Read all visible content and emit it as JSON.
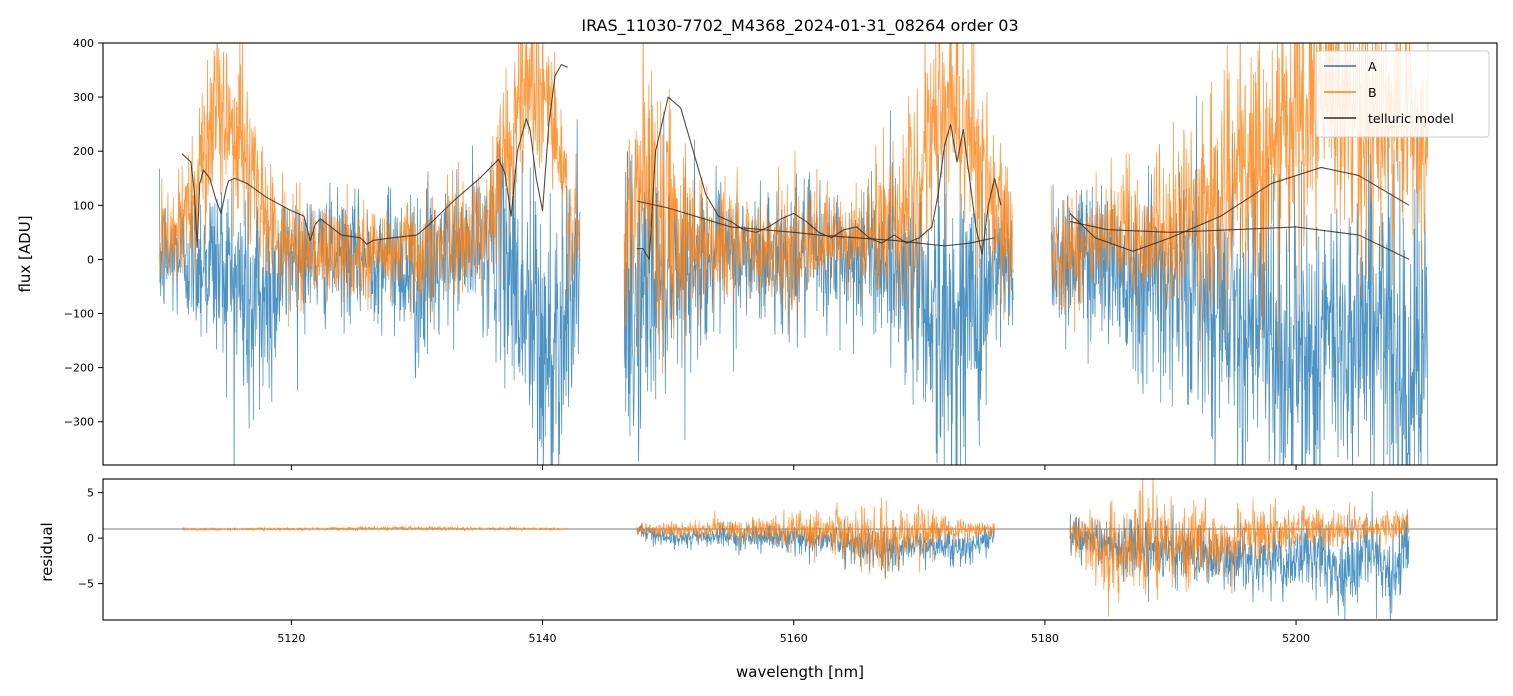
{
  "figure_title": "IRAS_11030-7702_M4368_2024-01-31_08264  order 03",
  "colors": {
    "A": "#1f77b4",
    "B": "#ff7f0e",
    "telluric": "#3a2a1e"
  },
  "chart_data": [
    {
      "panel": "flux",
      "type": "line",
      "title": "IRAS_11030-7702_M4368_2024-01-31_08264  order 03",
      "xlabel": "",
      "ylabel": "flux [ADU]",
      "xlim": [
        5105,
        5216
      ],
      "ylim": [
        -380,
        400
      ],
      "yticks": [
        -300,
        -200,
        -100,
        0,
        100,
        200,
        300,
        400
      ],
      "ytick_labels": [
        "−300",
        "−200",
        "−100",
        "0",
        "100",
        "200",
        "300",
        "400"
      ],
      "legend": {
        "placement": "top-right",
        "entries": [
          "A",
          "B",
          "telluric model"
        ]
      },
      "series": [
        {
          "name": "A",
          "noise_segments": [
            {
              "x": [
                5109.5,
                5111,
                5113,
                5115,
                5117,
                5120,
                5125,
                5128,
                5130,
                5133,
                5136,
                5137.5,
                5139,
                5140.5,
                5141.5,
                5143
              ],
              "center": [
                0,
                10,
                0,
                -20,
                -100,
                10,
                0,
                10,
                -40,
                10,
                30,
                0,
                -120,
                -200,
                -100,
                0
              ],
              "amp": [
                110,
                110,
                140,
                170,
                250,
                110,
                100,
                110,
                160,
                110,
                140,
                220,
                300,
                300,
                250,
                150
              ]
            },
            {
              "x": [
                5146.5,
                5148,
                5150,
                5153,
                5158,
                5163,
                5167,
                5170,
                5172,
                5174,
                5176,
                5177.5
              ],
              "center": [
                -150,
                -60,
                -20,
                0,
                0,
                0,
                10,
                -40,
                -150,
                -100,
                -40,
                -10
              ],
              "amp": [
                300,
                240,
                170,
                130,
                120,
                120,
                130,
                200,
                280,
                250,
                160,
                120
              ]
            },
            {
              "x": [
                5180.5,
                5184,
                5188,
                5192,
                5195,
                5197,
                5199,
                5201,
                5203,
                5206,
                5208,
                5210.5
              ],
              "center": [
                0,
                10,
                -30,
                -50,
                -80,
                -120,
                -200,
                -180,
                -150,
                -100,
                -180,
                -200
              ],
              "amp": [
                120,
                140,
                170,
                200,
                220,
                240,
                280,
                260,
                240,
                260,
                300,
                300
              ]
            }
          ]
        },
        {
          "name": "B",
          "noise_segments": [
            {
              "x": [
                5109.5,
                5111,
                5113,
                5114.5,
                5116,
                5118,
                5120,
                5125,
                5130,
                5133,
                5136,
                5137.5,
                5139,
                5140.5,
                5141.5,
                5143
              ],
              "center": [
                30,
                40,
                200,
                280,
                220,
                70,
                20,
                10,
                20,
                30,
                80,
                250,
                350,
                300,
                150,
                0
              ],
              "amp": [
                90,
                90,
                150,
                150,
                150,
                100,
                90,
                80,
                90,
                90,
                110,
                150,
                150,
                150,
                130,
                100
              ]
            },
            {
              "x": [
                5146.5,
                5148,
                5150,
                5152,
                5155,
                5160,
                5165,
                5170,
                5172,
                5174,
                5176,
                5177.5
              ],
              "center": [
                0,
                150,
                80,
                40,
                30,
                20,
                30,
                120,
                300,
                250,
                80,
                20
              ],
              "amp": [
                200,
                240,
                200,
                130,
                100,
                90,
                100,
                160,
                200,
                200,
                140,
                100
              ]
            },
            {
              "x": [
                5180.5,
                5185,
                5190,
                5193,
                5196,
                5198,
                5200,
                5202,
                5204,
                5206,
                5209,
                5210.5
              ],
              "center": [
                20,
                30,
                50,
                100,
                150,
                200,
                250,
                300,
                280,
                230,
                270,
                200
              ],
              "amp": [
                100,
                110,
                140,
                170,
                200,
                220,
                220,
                220,
                220,
                220,
                200,
                160
              ]
            }
          ]
        },
        {
          "name": "telluric model",
          "curves": [
            {
              "x": [
                5111.3,
                5112,
                5112.3,
                5112.5,
                5112.7,
                5113,
                5113.5,
                5114,
                5114.4,
                5114.8,
                5115,
                5115.5,
                5116.5,
                5118,
                5120,
                5121,
                5121.5,
                5121.9,
                5122.3,
                5124,
                5125.5,
                5126,
                5126.5,
                5128,
                5130,
                5131,
                5133,
                5135,
                5136.5,
                5137,
                5137.5,
                5138,
                5138.7,
                5139,
                5139.5,
                5140,
                5140.5,
                5141,
                5141.5,
                5142
              ],
              "y": [
                195,
                180,
                120,
                22,
                140,
                165,
                150,
                110,
                85,
                130,
                145,
                150,
                140,
                115,
                90,
                80,
                35,
                65,
                75,
                45,
                40,
                28,
                35,
                40,
                45,
                65,
                110,
                150,
                185,
                160,
                80,
                200,
                260,
                240,
                150,
                90,
                250,
                340,
                360,
                355
              ]
            },
            {
              "x": [
                5147.5,
                5148,
                5148.5,
                5149,
                5150,
                5151,
                5152,
                5153,
                5154,
                5155,
                5156,
                5157,
                5158,
                5159,
                5160,
                5161,
                5162,
                5163,
                5164,
                5165,
                5166,
                5167,
                5168,
                5169,
                5170,
                5171,
                5171.5,
                5172,
                5172.5,
                5173,
                5173.5,
                5174,
                5174.5,
                5175,
                5175.5,
                5176,
                5176.5
              ],
              "y": [
                20,
                20,
                0,
                200,
                300,
                280,
                200,
                120,
                80,
                70,
                55,
                50,
                60,
                75,
                85,
                70,
                50,
                40,
                55,
                60,
                40,
                30,
                45,
                30,
                40,
                60,
                120,
                210,
                250,
                180,
                240,
                150,
                60,
                10,
                100,
                150,
                100
              ]
            },
            {
              "x": [
                5147.5,
                5150,
                5155,
                5160,
                5162,
                5165,
                5168,
                5170,
                5172,
                5174,
                5176
              ],
              "y": [
                108,
                95,
                60,
                50,
                45,
                40,
                35,
                30,
                25,
                30,
                40
              ]
            },
            {
              "x": [
                5182,
                5185,
                5190,
                5195,
                5200,
                5205,
                5209
              ],
              "y": [
                70,
                55,
                50,
                55,
                60,
                45,
                0
              ]
            },
            {
              "x": [
                5182,
                5184,
                5187,
                5190,
                5194,
                5198,
                5202,
                5205,
                5209
              ],
              "y": [
                85,
                40,
                15,
                40,
                80,
                140,
                170,
                155,
                100
              ]
            }
          ]
        }
      ]
    },
    {
      "panel": "residual",
      "type": "line",
      "xlabel": "wavelength [nm]",
      "ylabel": "residual",
      "xlim": [
        5105,
        5216
      ],
      "ylim": [
        -9,
        6.5
      ],
      "xticks": [
        5120,
        5140,
        5160,
        5180,
        5200
      ],
      "xtick_labels": [
        "5120",
        "5140",
        "5160",
        "5180",
        "5200"
      ],
      "yticks": [
        -5,
        0,
        5
      ],
      "ytick_labels": [
        "−5",
        "0",
        "5"
      ],
      "reference_line": 1,
      "series": [
        {
          "name": "A",
          "noise_segments": [
            {
              "x": [
                5147.5,
                5150,
                5155,
                5160,
                5165,
                5168,
                5170,
                5173,
                5175,
                5176
              ],
              "center": [
                1,
                0,
                0.2,
                0,
                -0.5,
                -1.5,
                -0.5,
                -1,
                -0.5,
                0.5
              ],
              "amp": [
                0.6,
                0.9,
                1.1,
                1.3,
                1.8,
                2.4,
                1.6,
                2,
                1.6,
                1
              ]
            },
            {
              "x": [
                5182,
                5185,
                5188,
                5191,
                5194,
                5197,
                5199,
                5201,
                5204,
                5206,
                5208,
                5209
              ],
              "center": [
                0,
                -0.5,
                -1,
                -1.5,
                -2.5,
                -2,
                -3,
                -2,
                -4,
                -2,
                -4,
                0
              ],
              "amp": [
                2,
                2.5,
                3,
                3,
                3,
                3.5,
                3.5,
                3.5,
                4,
                4,
                4.5,
                4
              ]
            }
          ]
        },
        {
          "name": "B",
          "noise_segments": [
            {
              "x": [
                5111.3,
                5120,
                5130,
                5142
              ],
              "center": [
                1,
                1,
                1.1,
                1
              ],
              "amp": [
                0.12,
                0.15,
                0.2,
                0.1
              ]
            },
            {
              "x": [
                5147.5,
                5150,
                5155,
                5160,
                5164,
                5167,
                5169,
                5172,
                5174,
                5176
              ],
              "center": [
                1,
                0.8,
                1,
                0.8,
                0.5,
                0,
                0.5,
                1,
                1,
                1
              ],
              "amp": [
                0.5,
                0.8,
                1.2,
                1.6,
                2.5,
                3.5,
                3,
                1.5,
                1,
                0.8
              ]
            },
            {
              "x": [
                5182,
                5184,
                5186,
                5188,
                5190,
                5192,
                5194,
                5197,
                5200,
                5203,
                5206,
                5209
              ],
              "center": [
                1,
                -1,
                -2,
                0,
                0,
                -1,
                -1,
                0.5,
                1,
                1,
                1,
                1.5
              ],
              "amp": [
                1.5,
                4,
                5,
                6,
                4,
                4,
                3,
                2.5,
                2,
                2,
                1.5,
                1.5
              ]
            }
          ]
        }
      ]
    }
  ]
}
